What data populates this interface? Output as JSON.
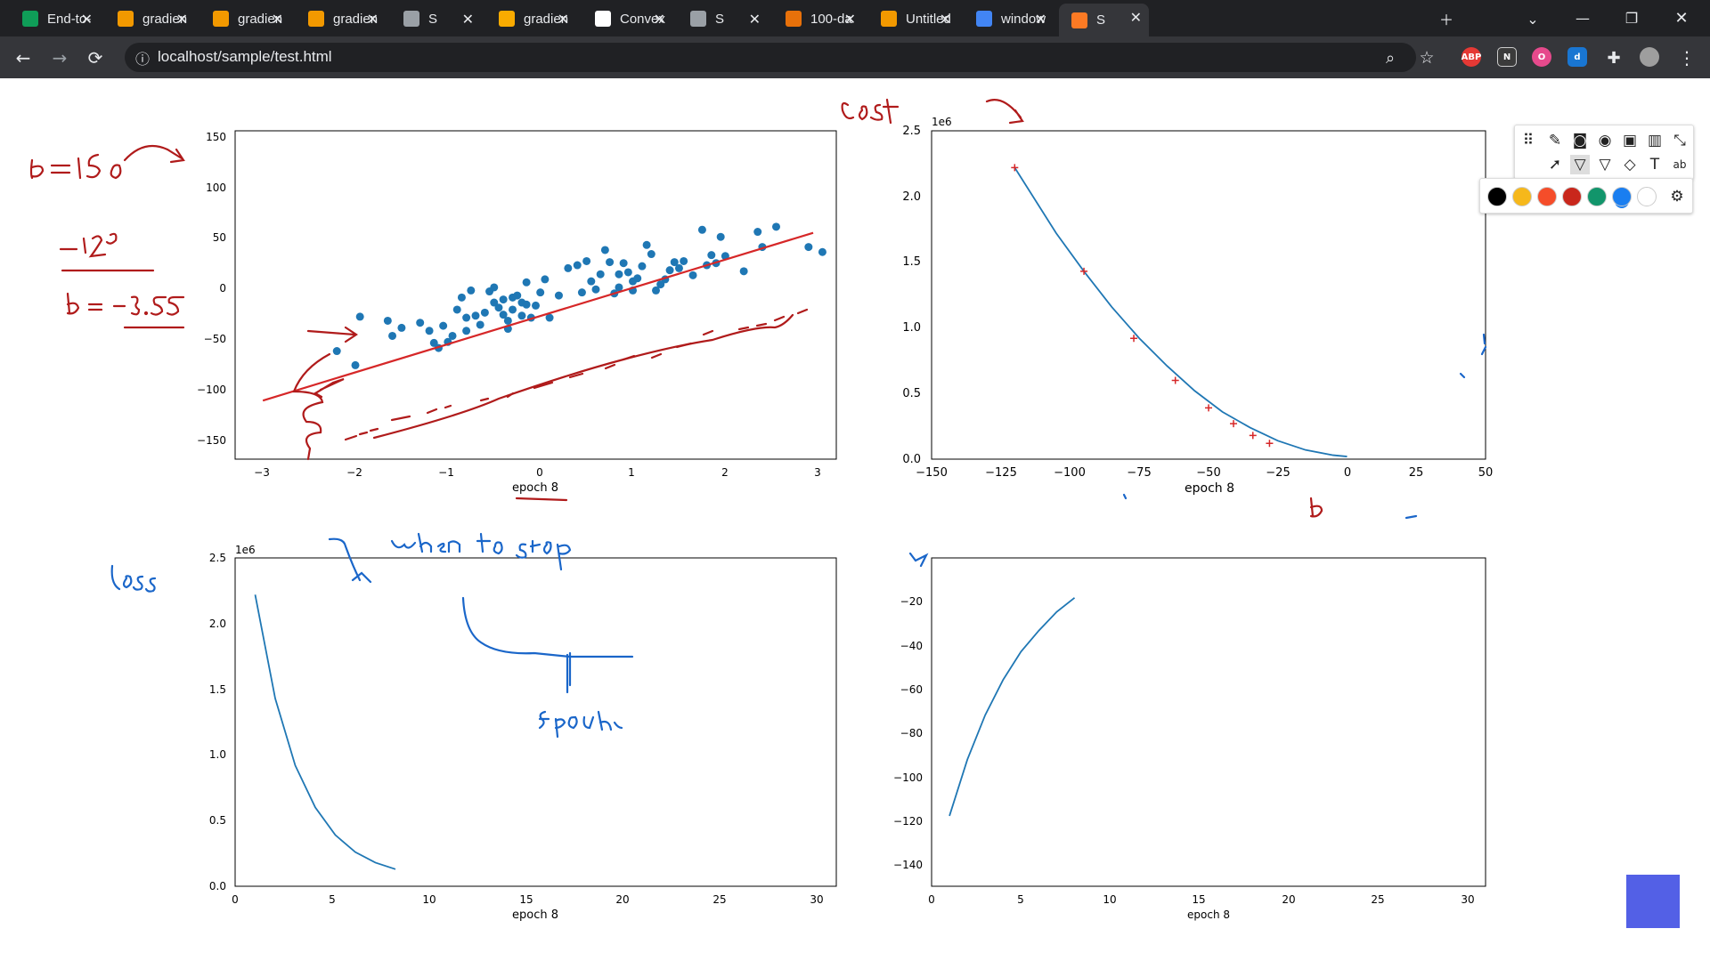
{
  "browser": {
    "tabs": [
      {
        "title": "End-to-",
        "icon": "sheets-icon",
        "color": "#0f9d58"
      },
      {
        "title": "gradien",
        "icon": "book-icon",
        "color": "#f29900"
      },
      {
        "title": "gradien",
        "icon": "book-icon",
        "color": "#f29900"
      },
      {
        "title": "gradien",
        "icon": "book-icon",
        "color": "#f29900"
      },
      {
        "title": "S",
        "icon": "globe-icon",
        "color": "#9aa0a6"
      },
      {
        "title": "gradien",
        "icon": "colab-icon",
        "color": "#f9ab00"
      },
      {
        "title": "Convex",
        "icon": "wikipedia-icon",
        "color": "#ffffff"
      },
      {
        "title": "S",
        "icon": "globe-icon",
        "color": "#9aa0a6"
      },
      {
        "title": "100-da",
        "icon": "loading-icon",
        "color": "#e8710a"
      },
      {
        "title": "Untitled",
        "icon": "book-icon",
        "color": "#f29900"
      },
      {
        "title": "window",
        "icon": "google-icon",
        "color": "#4285f4"
      },
      {
        "title": "S",
        "icon": "xampp-icon",
        "color": "#fb7a24"
      }
    ],
    "url": "localhost/sample/test.html",
    "extensions": [
      "ABP",
      "N",
      "O",
      "d"
    ]
  },
  "annotation_toolbar": {
    "colors": [
      "#000000",
      "#f6b81b",
      "#f54d2a",
      "#c9271c",
      "#12956b",
      "#1a7ef0",
      "#ffffff"
    ],
    "selected_color": "#1a7ef0",
    "tools_row1": [
      "move-handle-icon",
      "pen-icon",
      "camera-icon",
      "eye-icon",
      "save-icon",
      "trash-icon",
      "collapse-icon"
    ],
    "tools_row2": [
      "pointer-icon",
      "highlighter-icon",
      "marker-icon",
      "eraser-icon",
      "text-icon",
      "abc-icon"
    ]
  },
  "plots": {
    "scatter": {
      "xlabel": "epoch 8",
      "x_ticks": [
        "−3",
        "−2",
        "−1",
        "0",
        "1",
        "2",
        "3"
      ],
      "y_ticks": [
        "150",
        "100",
        "50",
        "0",
        "−50",
        "−100",
        "−150"
      ]
    },
    "cost_vs_b": {
      "xlabel": "epoch 8",
      "scale_label": "1e6",
      "x_ticks": [
        "−150",
        "−125",
        "−100",
        "−75",
        "−50",
        "−25",
        "0",
        "25",
        "50"
      ],
      "y_ticks": [
        "2.5",
        "2.0",
        "1.5",
        "1.0",
        "0.5",
        "0.0"
      ]
    },
    "loss_vs_epoch": {
      "xlabel": "epoch 8",
      "scale_label": "1e6",
      "x_ticks": [
        "0",
        "5",
        "10",
        "15",
        "20",
        "25",
        "30"
      ],
      "y_ticks": [
        "2.5",
        "2.0",
        "1.5",
        "1.0",
        "0.5",
        "0.0"
      ]
    },
    "b_vs_epoch": {
      "xlabel": "epoch 8",
      "x_ticks": [
        "0",
        "5",
        "10",
        "15",
        "20",
        "25",
        "30"
      ],
      "y_ticks": [
        "−20",
        "−40",
        "−60",
        "−80",
        "−100",
        "−120",
        "−140"
      ]
    }
  },
  "chart_data": [
    {
      "type": "scatter",
      "xlim": [
        -3.3,
        3.2
      ],
      "ylim": [
        -170,
        155
      ],
      "points": [
        [
          -2.2,
          -63
        ],
        [
          -2.0,
          -77
        ],
        [
          -1.95,
          -29
        ],
        [
          -1.65,
          -33
        ],
        [
          -1.6,
          -48
        ],
        [
          -1.5,
          -40
        ],
        [
          -1.3,
          -35
        ],
        [
          -1.2,
          -43
        ],
        [
          -1.15,
          -55
        ],
        [
          -1.1,
          -60
        ],
        [
          -1.05,
          -38
        ],
        [
          -1.0,
          -54
        ],
        [
          -0.95,
          -48
        ],
        [
          -0.9,
          -22
        ],
        [
          -0.85,
          -10
        ],
        [
          -0.8,
          -30
        ],
        [
          -0.8,
          -43
        ],
        [
          -0.75,
          -3
        ],
        [
          -0.7,
          -28
        ],
        [
          -0.65,
          -37
        ],
        [
          -0.6,
          -25
        ],
        [
          -0.55,
          -4
        ],
        [
          -0.5,
          0
        ],
        [
          -0.5,
          -15
        ],
        [
          -0.45,
          -20
        ],
        [
          -0.4,
          -12
        ],
        [
          -0.4,
          -27
        ],
        [
          -0.35,
          -33
        ],
        [
          -0.35,
          -41
        ],
        [
          -0.3,
          -10
        ],
        [
          -0.3,
          -22
        ],
        [
          -0.25,
          -8
        ],
        [
          -0.2,
          -15
        ],
        [
          -0.2,
          -28
        ],
        [
          -0.15,
          5
        ],
        [
          -0.15,
          -17
        ],
        [
          -0.1,
          -30
        ],
        [
          -0.05,
          -18
        ],
        [
          0.0,
          -5
        ],
        [
          0.05,
          8
        ],
        [
          0.1,
          -30
        ],
        [
          0.2,
          -8
        ],
        [
          0.3,
          19
        ],
        [
          0.4,
          22
        ],
        [
          0.45,
          -5
        ],
        [
          0.5,
          26
        ],
        [
          0.55,
          6
        ],
        [
          0.6,
          -2
        ],
        [
          0.65,
          13
        ],
        [
          0.7,
          37
        ],
        [
          0.75,
          25
        ],
        [
          0.8,
          -6
        ],
        [
          0.85,
          0
        ],
        [
          0.85,
          13
        ],
        [
          0.9,
          24
        ],
        [
          0.95,
          15
        ],
        [
          1.0,
          -3
        ],
        [
          1.0,
          6
        ],
        [
          1.05,
          9
        ],
        [
          1.1,
          21
        ],
        [
          1.15,
          42
        ],
        [
          1.2,
          33
        ],
        [
          1.25,
          -3
        ],
        [
          1.3,
          3
        ],
        [
          1.35,
          8
        ],
        [
          1.4,
          17
        ],
        [
          1.45,
          25
        ],
        [
          1.5,
          19
        ],
        [
          1.55,
          26
        ],
        [
          1.65,
          12
        ],
        [
          1.75,
          57
        ],
        [
          1.8,
          22
        ],
        [
          1.85,
          32
        ],
        [
          1.9,
          24
        ],
        [
          1.95,
          50
        ],
        [
          2.0,
          31
        ],
        [
          2.2,
          16
        ],
        [
          2.35,
          55
        ],
        [
          2.4,
          40
        ],
        [
          2.55,
          60
        ],
        [
          2.9,
          40
        ],
        [
          3.05,
          35
        ]
      ],
      "fit_line": {
        "x": [
          -3.0,
          2.95
        ],
        "y": [
          -112,
          54
        ]
      }
    },
    {
      "type": "line",
      "xlabel": "epoch 8",
      "xlim": [
        -150,
        50
      ],
      "ylim": [
        0,
        2.5
      ],
      "x": [
        -120,
        -105,
        -95,
        -85,
        -75,
        -65,
        -55,
        -45,
        -35,
        -25,
        -15,
        -5,
        0
      ],
      "y": [
        2.22,
        1.72,
        1.43,
        1.16,
        0.92,
        0.71,
        0.52,
        0.36,
        0.24,
        0.14,
        0.07,
        0.03,
        0.02
      ],
      "markers": {
        "x": [
          -120,
          -95,
          -77,
          -62,
          -50,
          -41,
          -34,
          -28
        ],
        "y": [
          2.22,
          1.43,
          0.92,
          0.6,
          0.39,
          0.27,
          0.18,
          0.12
        ]
      }
    },
    {
      "type": "line",
      "xlabel": "epoch 8",
      "xlim": [
        0,
        30
      ],
      "ylim": [
        0,
        2.5
      ],
      "x": [
        1,
        2,
        3,
        4,
        5,
        6,
        7,
        8
      ],
      "y": [
        2.22,
        1.43,
        0.92,
        0.6,
        0.39,
        0.26,
        0.18,
        0.13
      ]
    },
    {
      "type": "line",
      "xlabel": "epoch 8",
      "xlim": [
        0,
        31
      ],
      "ylim": [
        -150,
        -10
      ],
      "x": [
        1,
        2,
        3,
        4,
        5,
        6,
        7,
        8
      ],
      "y": [
        -120,
        -96,
        -77,
        -62,
        -50,
        -41,
        -33,
        -27
      ]
    }
  ]
}
